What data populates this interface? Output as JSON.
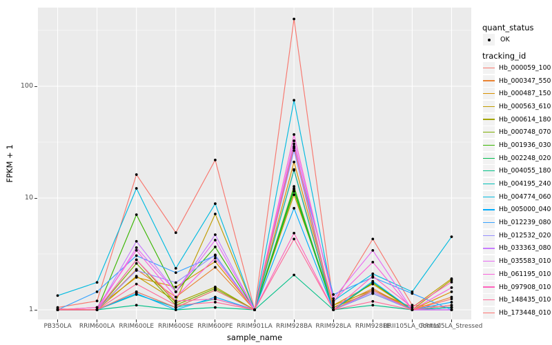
{
  "figure": {
    "x_axis_title": "sample_name",
    "y_axis_title": "FPKM + 1"
  },
  "legend": {
    "quant_status_title": "quant_status",
    "ok_label": "OK",
    "tracking_id_title": "tracking_id"
  },
  "colors": {
    "panel_bg": "#EBEBEB",
    "grid": "#FFFFFF",
    "tick_text": "#4D4D4D",
    "axis_text": "#000000",
    "point": "#000000",
    "legend_key_bg": "#F2F2F2"
  },
  "chart_data": {
    "type": "line",
    "title": "",
    "xlabel": "sample_name",
    "ylabel": "FPKM + 1",
    "y_scale": "log10",
    "y_ticks": [
      1,
      10,
      100
    ],
    "y_minor_ticks": [
      3.162,
      31.62,
      316.2
    ],
    "ylim_approx": [
      0.82,
      505
    ],
    "grid": "on",
    "legend_position": "right",
    "point_legend": {
      "title": "quant_status",
      "entries": [
        "OK"
      ],
      "marker": "black-point"
    },
    "series_legend_title": "tracking_id",
    "categories": [
      "PB350LA",
      "RRIM600LA",
      "RRIM600LE",
      "RRIM600SE",
      "RRIM600PE",
      "RRIM901LA",
      "RRIM928BA",
      "RRIM928LA",
      "RRIM928LE",
      "RRII105LA_Control",
      "RRII105LA_Stressed"
    ],
    "series": [
      {
        "name": "Hb_000059_100",
        "color": "#F8766D",
        "values": [
          1.05,
          1.2,
          16.2,
          4.9,
          21.9,
          1.0,
          400,
          1.15,
          4.3,
          1.1,
          1.05
        ]
      },
      {
        "name": "Hb_000347_550",
        "color": "#EA8331",
        "values": [
          1.0,
          1.0,
          2.3,
          1.3,
          2.4,
          1.0,
          18.0,
          1.05,
          1.55,
          1.0,
          1.3
        ]
      },
      {
        "name": "Hb_000487_150",
        "color": "#D89000",
        "values": [
          1.0,
          1.05,
          1.95,
          1.6,
          2.7,
          1.0,
          21.0,
          1.1,
          1.7,
          1.0,
          1.45
        ]
      },
      {
        "name": "Hb_000563_610",
        "color": "#C09B00",
        "values": [
          1.0,
          1.0,
          2.0,
          1.2,
          7.2,
          1.0,
          10.7,
          1.1,
          1.5,
          1.05,
          1.9
        ]
      },
      {
        "name": "Hb_000614_180",
        "color": "#A3A500",
        "values": [
          1.0,
          1.0,
          2.8,
          1.15,
          1.6,
          1.0,
          12.0,
          1.05,
          1.45,
          1.0,
          1.85
        ]
      },
      {
        "name": "Hb_000748_070",
        "color": "#7CAE00",
        "values": [
          1.0,
          1.0,
          2.6,
          1.1,
          1.55,
          1.0,
          12.7,
          1.0,
          1.4,
          1.0,
          1.1
        ]
      },
      {
        "name": "Hb_001936_030",
        "color": "#39B600",
        "values": [
          1.0,
          1.0,
          7.1,
          1.45,
          3.65,
          1.0,
          11.5,
          1.0,
          1.75,
          1.0,
          1.05
        ]
      },
      {
        "name": "Hb_002248_020",
        "color": "#00BB4E",
        "values": [
          1.0,
          1.0,
          1.45,
          1.05,
          1.5,
          1.0,
          12.2,
          1.0,
          1.5,
          1.0,
          1.05
        ]
      },
      {
        "name": "Hb_004055_180",
        "color": "#00C087",
        "values": [
          1.0,
          1.0,
          1.1,
          1.0,
          1.05,
          1.0,
          2.05,
          1.0,
          1.1,
          1.0,
          1.0
        ]
      },
      {
        "name": "Hb_004195_240",
        "color": "#00C0B8",
        "values": [
          1.0,
          1.0,
          1.37,
          1.05,
          1.25,
          1.0,
          17.7,
          1.0,
          1.4,
          1.0,
          1.05
        ]
      },
      {
        "name": "Hb_004774_060",
        "color": "#00BAE0",
        "values": [
          1.34,
          1.76,
          12.2,
          2.35,
          8.9,
          1.0,
          75.0,
          1.2,
          2.1,
          1.45,
          4.5
        ]
      },
      {
        "name": "Hb_005000_040",
        "color": "#00ACFC",
        "values": [
          1.0,
          1.0,
          1.4,
          1.0,
          1.3,
          1.0,
          8.1,
          1.0,
          1.8,
          1.0,
          1.17
        ]
      },
      {
        "name": "Hb_012239_080",
        "color": "#35A2FF",
        "values": [
          1.0,
          1.45,
          3.05,
          2.15,
          3.05,
          1.0,
          28.0,
          1.37,
          1.95,
          1.4,
          1.0
        ]
      },
      {
        "name": "Hb_012532_020",
        "color": "#9590FF",
        "values": [
          1.0,
          1.0,
          2.25,
          1.75,
          3.1,
          1.0,
          26.6,
          1.0,
          1.4,
          1.0,
          1.0
        ]
      },
      {
        "name": "Hb_033363_080",
        "color": "#C77CFF",
        "values": [
          1.0,
          1.0,
          4.1,
          1.45,
          4.7,
          1.0,
          30.5,
          1.0,
          1.45,
          1.0,
          1.0
        ]
      },
      {
        "name": "Hb_035583_010",
        "color": "#E76BF3",
        "values": [
          1.0,
          1.0,
          3.6,
          1.45,
          4.2,
          1.0,
          32.5,
          1.26,
          3.4,
          1.0,
          1.0
        ]
      },
      {
        "name": "Hb_061195_010",
        "color": "#FA62DB",
        "values": [
          1.0,
          1.05,
          3.4,
          1.3,
          2.9,
          1.0,
          37.0,
          1.2,
          2.67,
          1.0,
          1.58
        ]
      },
      {
        "name": "Hb_097908_010",
        "color": "#FF62BC",
        "values": [
          1.0,
          1.0,
          2.8,
          1.2,
          1.25,
          1.0,
          4.85,
          1.0,
          2.0,
          1.05,
          1.77
        ]
      },
      {
        "name": "Hb_148435_010",
        "color": "#FF6A98",
        "values": [
          1.02,
          1.0,
          1.7,
          1.1,
          1.17,
          1.0,
          4.3,
          1.0,
          1.19,
          1.0,
          1.1
        ]
      },
      {
        "name": "Hb_173448_010",
        "color": "#FF7370",
        "values": [
          1.0,
          1.0,
          1.45,
          1.05,
          1.5,
          1.0,
          29.0,
          1.0,
          1.5,
          1.0,
          1.25
        ]
      }
    ]
  }
}
